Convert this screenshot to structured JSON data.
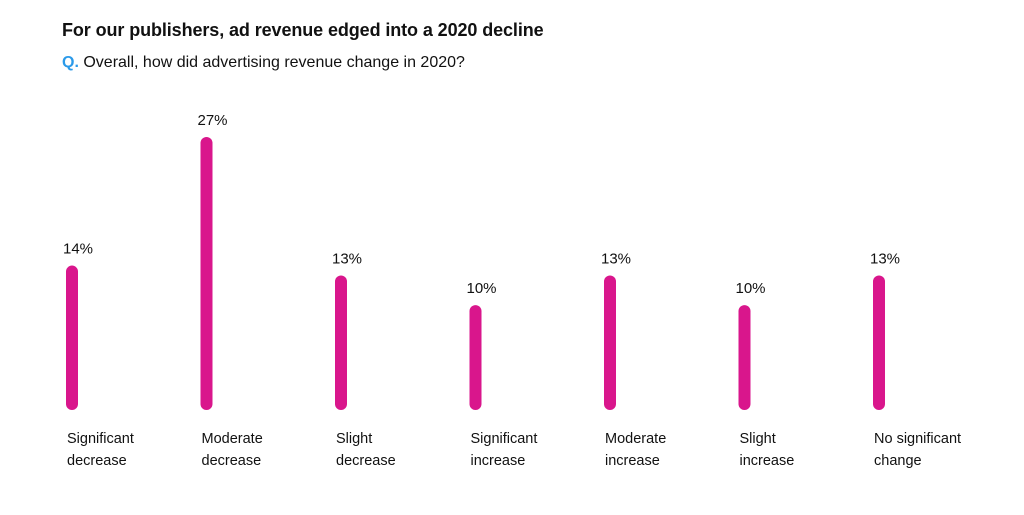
{
  "header": {
    "title": "For our publishers, ad revenue edged into a 2020 decline",
    "question_prefix": "Q.",
    "question": "Overall, how did advertising revenue change in 2020?"
  },
  "colors": {
    "bar": "#d9168c",
    "question_prefix": "#2b9ae9"
  },
  "chart_data": {
    "type": "bar",
    "categories": [
      [
        "Significant",
        "decrease"
      ],
      [
        "Moderate",
        "decrease"
      ],
      [
        "Slight",
        "decrease"
      ],
      [
        "Significant",
        "increase"
      ],
      [
        "Moderate",
        "increase"
      ],
      [
        "Slight",
        "increase"
      ],
      [
        "No significant",
        "change"
      ]
    ],
    "values": [
      14,
      27,
      13,
      10,
      13,
      10,
      13
    ],
    "value_labels": [
      "14%",
      "27%",
      "13%",
      "10%",
      "13%",
      "10%",
      "13%"
    ],
    "unit": "%",
    "ylim": [
      0,
      27
    ],
    "grid": false,
    "legend": "none"
  }
}
